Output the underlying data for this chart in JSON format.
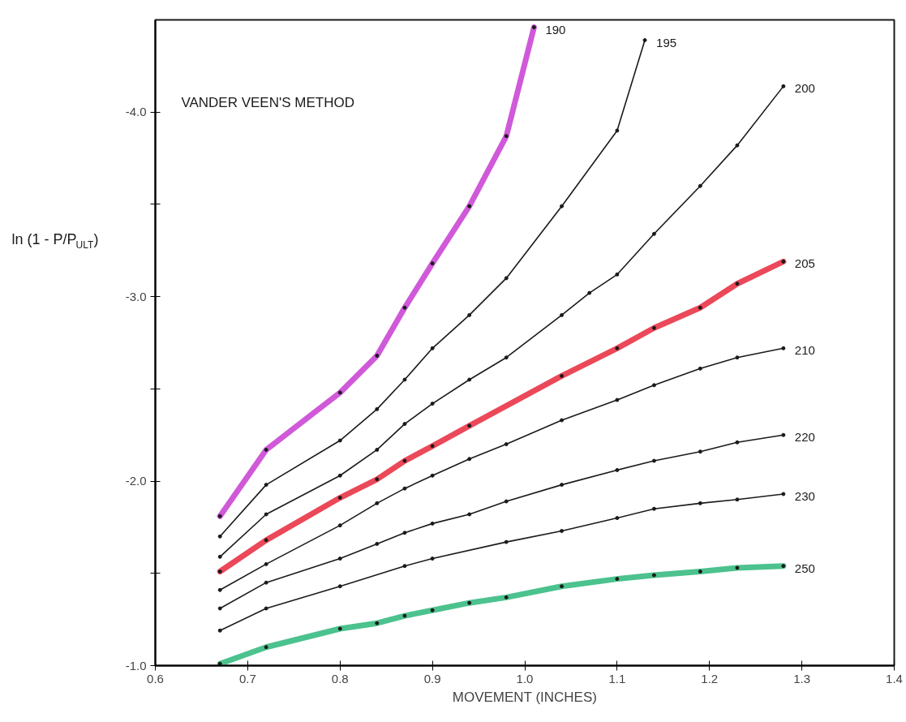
{
  "chart_data": {
    "type": "line",
    "title": "VANDER VEEN'S METHOD",
    "xlabel": "MOVEMENT (INCHES)",
    "ylabel": "ln (1 - P/P$_{ULT}$)",
    "xlim": [
      0.6,
      1.4
    ],
    "ylim": [
      -1.0,
      -4.5
    ],
    "xticks": [
      0.6,
      0.7,
      0.8,
      0.9,
      {
        "value": 1.0,
        "label": "1.0"
      },
      1.1,
      1.2,
      1.3,
      1.4
    ],
    "yticks": [
      {
        "value": -1.0,
        "label": "-1.0"
      },
      {
        "value": -1.5,
        "label": null
      },
      {
        "value": -2.0,
        "label": "-2.0"
      },
      {
        "value": -2.5,
        "label": null
      },
      {
        "value": -3.0,
        "label": "-3.0"
      },
      {
        "value": -3.5,
        "label": null
      },
      {
        "value": -4.0,
        "label": "-4.0"
      }
    ],
    "grid": false,
    "marker": "circle",
    "line_style": "solid",
    "series": [
      {
        "name": "190",
        "color": "#c83cd2",
        "x": [
          0.67,
          0.72,
          0.8,
          0.84,
          0.87,
          0.9,
          0.94,
          0.98,
          1.01
        ],
        "values": [
          -1.81,
          -2.17,
          -2.48,
          -2.68,
          -2.94,
          -3.18,
          -3.49,
          -3.87,
          -4.46
        ]
      },
      {
        "name": "195",
        "color": "#1a1a1a",
        "x": [
          0.67,
          0.72,
          0.8,
          0.84,
          0.87,
          0.9,
          0.94,
          0.98,
          1.04,
          1.1,
          1.13
        ],
        "values": [
          -1.7,
          -1.98,
          -2.22,
          -2.39,
          -2.55,
          -2.72,
          -2.9,
          -3.1,
          -3.49,
          -3.9,
          -4.39
        ]
      },
      {
        "name": "200",
        "color": "#1a1a1a",
        "x": [
          0.67,
          0.72,
          0.8,
          0.84,
          0.87,
          0.9,
          0.94,
          0.98,
          1.04,
          1.07,
          1.1,
          1.14,
          1.19,
          1.23,
          1.28
        ],
        "values": [
          -1.59,
          -1.82,
          -2.03,
          -2.17,
          -2.31,
          -2.42,
          -2.55,
          -2.67,
          -2.9,
          -3.02,
          -3.12,
          -3.34,
          -3.6,
          -3.82,
          -4.14
        ]
      },
      {
        "name": "205",
        "color": "#e8283c",
        "x": [
          0.67,
          0.72,
          0.8,
          0.84,
          0.87,
          0.9,
          0.94,
          1.04,
          1.1,
          1.14,
          1.19,
          1.23,
          1.28
        ],
        "values": [
          -1.51,
          -1.68,
          -1.91,
          -2.01,
          -2.11,
          -2.19,
          -2.3,
          -2.57,
          -2.72,
          -2.83,
          -2.94,
          -3.07,
          -3.19
        ]
      },
      {
        "name": "210",
        "color": "#1a1a1a",
        "x": [
          0.67,
          0.72,
          0.8,
          0.84,
          0.87,
          0.9,
          0.94,
          0.98,
          1.04,
          1.1,
          1.14,
          1.19,
          1.23,
          1.28
        ],
        "values": [
          -1.41,
          -1.55,
          -1.76,
          -1.88,
          -1.96,
          -2.03,
          -2.12,
          -2.2,
          -2.33,
          -2.44,
          -2.52,
          -2.61,
          -2.67,
          -2.72
        ]
      },
      {
        "name": "220",
        "color": "#1a1a1a",
        "x": [
          0.67,
          0.72,
          0.8,
          0.84,
          0.87,
          0.9,
          0.94,
          0.98,
          1.04,
          1.1,
          1.14,
          1.19,
          1.23,
          1.28
        ],
        "values": [
          -1.31,
          -1.45,
          -1.58,
          -1.66,
          -1.72,
          -1.77,
          -1.82,
          -1.89,
          -1.98,
          -2.06,
          -2.11,
          -2.16,
          -2.21,
          -2.25
        ]
      },
      {
        "name": "230",
        "color": "#1a1a1a",
        "x": [
          0.67,
          0.72,
          0.8,
          0.87,
          0.9,
          0.98,
          1.04,
          1.1,
          1.14,
          1.19,
          1.23,
          1.28
        ],
        "values": [
          -1.19,
          -1.31,
          -1.43,
          -1.54,
          -1.58,
          -1.67,
          -1.73,
          -1.8,
          -1.85,
          -1.88,
          -1.9,
          -1.93
        ]
      },
      {
        "name": "250",
        "color": "#2db77a",
        "x": [
          0.67,
          0.72,
          0.8,
          0.84,
          0.87,
          0.9,
          0.94,
          0.98,
          1.04,
          1.1,
          1.14,
          1.19,
          1.23,
          1.28
        ],
        "values": [
          -1.01,
          -1.1,
          -1.2,
          -1.23,
          -1.27,
          -1.3,
          -1.34,
          -1.37,
          -1.43,
          -1.47,
          -1.49,
          -1.51,
          -1.53,
          -1.54
        ]
      }
    ]
  }
}
